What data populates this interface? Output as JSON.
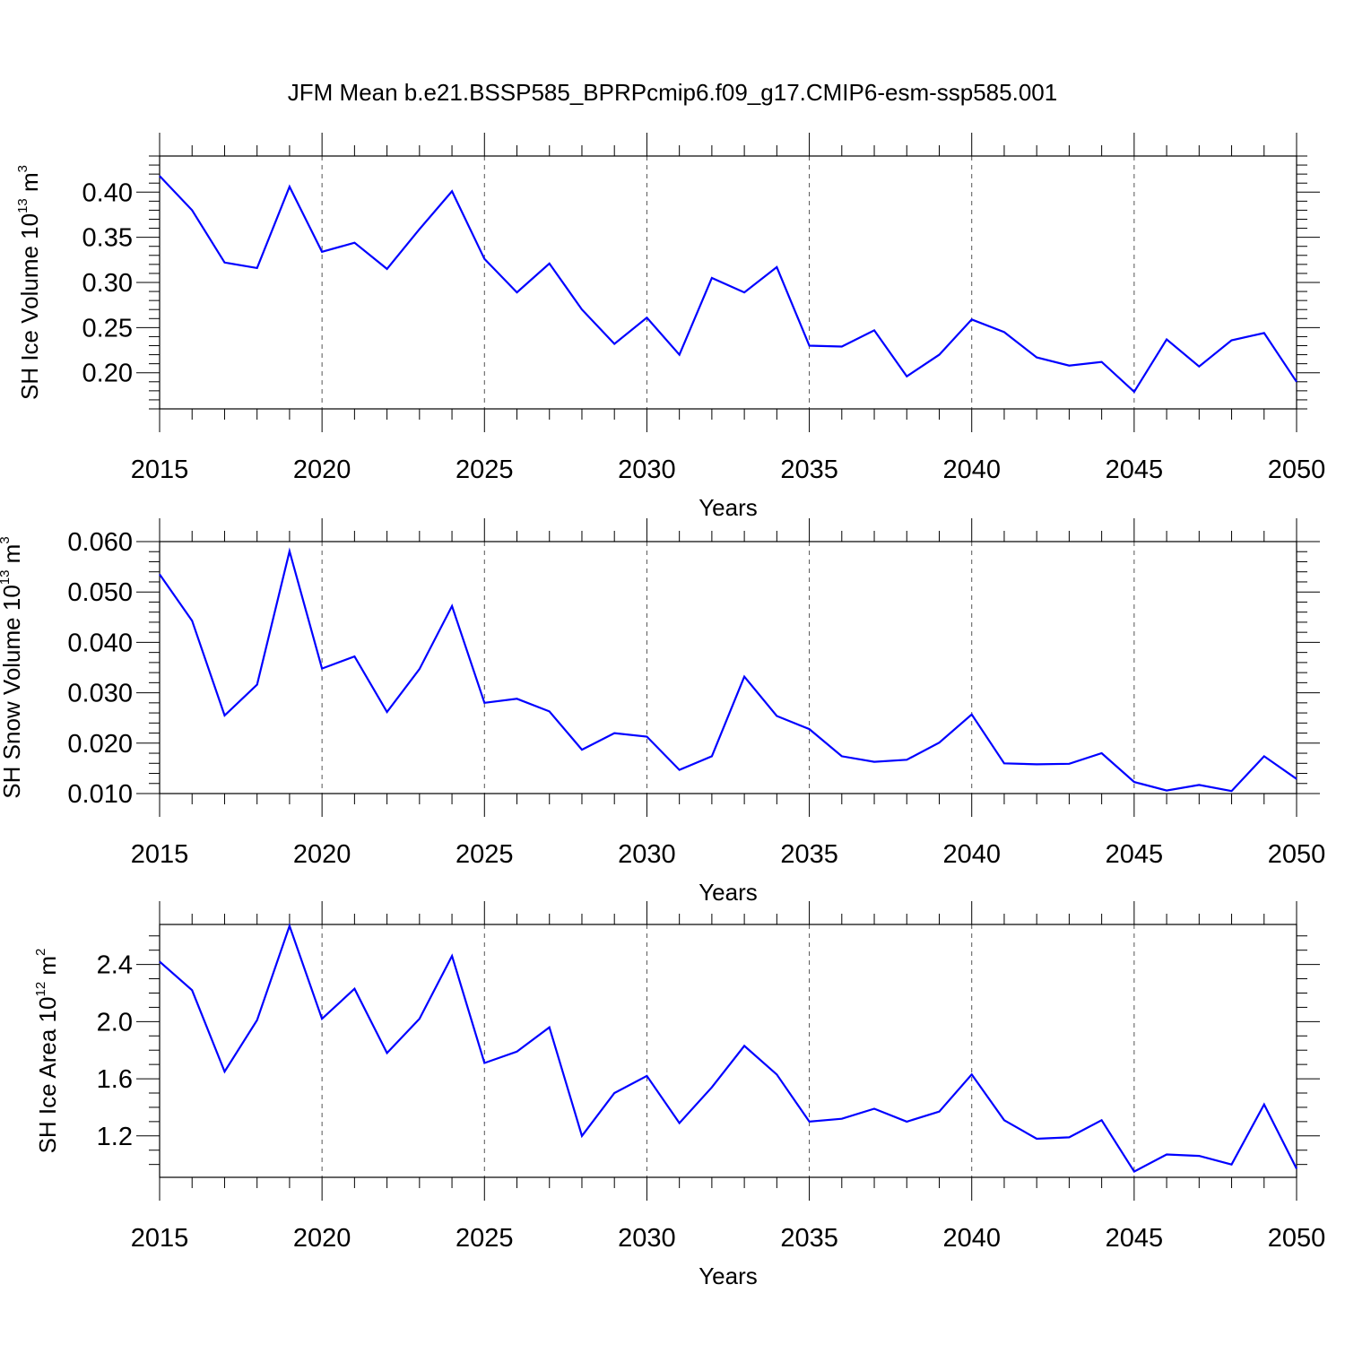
{
  "figure": {
    "title": "JFM Mean b.e21.BSSP585_BPRPcmip6.f09_g17.CMIP6-esm-ssp585.001",
    "line_color": "#0000ff"
  },
  "chart_data": [
    {
      "type": "line",
      "xlabel": "Years",
      "ylabel": {
        "prefix": "SH Ice Volume 10",
        "sup1": "13",
        "middle": " m",
        "sup2": "3"
      },
      "xlim": [
        2015,
        2050
      ],
      "ylim": [
        0.16,
        0.44
      ],
      "x_ticks": [
        2015,
        2020,
        2025,
        2030,
        2035,
        2040,
        2045,
        2050
      ],
      "x_tick_labels": [
        "2015",
        "2020",
        "2025",
        "2030",
        "2035",
        "2040",
        "2045",
        "2050"
      ],
      "x_minor_step": 1,
      "y_ticks": [
        0.2,
        0.25,
        0.3,
        0.35,
        0.4
      ],
      "y_tick_labels": [
        "0.20",
        "0.25",
        "0.30",
        "0.35",
        "0.40"
      ],
      "y_minor_step": 0.01,
      "grid": "x-major-dashed",
      "series": [
        {
          "x": [
            2015,
            2016,
            2017,
            2018,
            2019,
            2020,
            2021,
            2022,
            2023,
            2024,
            2025,
            2026,
            2027,
            2028,
            2029,
            2030,
            2031,
            2032,
            2033,
            2034,
            2035,
            2036,
            2037,
            2038,
            2039,
            2040,
            2041,
            2042,
            2043,
            2044,
            2045,
            2046,
            2047,
            2048,
            2049,
            2050
          ],
          "y": [
            0.418,
            0.38,
            0.322,
            0.316,
            0.406,
            0.334,
            0.344,
            0.315,
            0.359,
            0.401,
            0.326,
            0.289,
            0.321,
            0.27,
            0.232,
            0.261,
            0.22,
            0.305,
            0.289,
            0.317,
            0.23,
            0.229,
            0.247,
            0.196,
            0.22,
            0.259,
            0.245,
            0.217,
            0.208,
            0.212,
            0.179,
            0.237,
            0.207,
            0.236,
            0.244,
            0.19
          ]
        }
      ]
    },
    {
      "type": "line",
      "xlabel": "Years",
      "ylabel": {
        "prefix": "SH Snow Volume 10",
        "sup1": "13",
        "middle": " m",
        "sup2": "3"
      },
      "xlim": [
        2015,
        2050
      ],
      "ylim": [
        0.01,
        0.06
      ],
      "x_ticks": [
        2015,
        2020,
        2025,
        2030,
        2035,
        2040,
        2045,
        2050
      ],
      "x_tick_labels": [
        "2015",
        "2020",
        "2025",
        "2030",
        "2035",
        "2040",
        "2045",
        "2050"
      ],
      "x_minor_step": 1,
      "y_ticks": [
        0.01,
        0.02,
        0.03,
        0.04,
        0.05,
        0.06
      ],
      "y_tick_labels": [
        "0.010",
        "0.020",
        "0.030",
        "0.040",
        "0.050",
        "0.060"
      ],
      "y_minor_step": 0.002,
      "grid": "x-major-dashed",
      "series": [
        {
          "x": [
            2015,
            2016,
            2017,
            2018,
            2019,
            2020,
            2021,
            2022,
            2023,
            2024,
            2025,
            2026,
            2027,
            2028,
            2029,
            2030,
            2031,
            2032,
            2033,
            2034,
            2035,
            2036,
            2037,
            2038,
            2039,
            2040,
            2041,
            2042,
            2043,
            2044,
            2045,
            2046,
            2047,
            2048,
            2049,
            2050
          ],
          "y": [
            0.0535,
            0.0443,
            0.0255,
            0.0316,
            0.0581,
            0.0348,
            0.0372,
            0.0262,
            0.0347,
            0.0472,
            0.028,
            0.0288,
            0.0263,
            0.0187,
            0.022,
            0.0213,
            0.0147,
            0.0174,
            0.0332,
            0.0254,
            0.0228,
            0.0174,
            0.0163,
            0.0167,
            0.0201,
            0.0257,
            0.016,
            0.0158,
            0.0159,
            0.018,
            0.0123,
            0.0106,
            0.0117,
            0.0105,
            0.0174,
            0.0129
          ]
        }
      ]
    },
    {
      "type": "line",
      "xlabel": "Years",
      "ylabel": {
        "prefix": "SH Ice Area 10",
        "sup1": "12",
        "middle": " m",
        "sup2": "2"
      },
      "xlim": [
        2015,
        2050
      ],
      "ylim": [
        0.91,
        2.68
      ],
      "x_ticks": [
        2015,
        2020,
        2025,
        2030,
        2035,
        2040,
        2045,
        2050
      ],
      "x_tick_labels": [
        "2015",
        "2020",
        "2025",
        "2030",
        "2035",
        "2040",
        "2045",
        "2050"
      ],
      "x_minor_step": 1,
      "y_ticks": [
        1.2,
        1.6,
        2.0,
        2.4
      ],
      "y_tick_labels": [
        "1.2",
        "1.6",
        "2.0",
        "2.4"
      ],
      "y_minor_step": 0.1,
      "grid": "x-major-dashed",
      "series": [
        {
          "x": [
            2015,
            2016,
            2017,
            2018,
            2019,
            2020,
            2021,
            2022,
            2023,
            2024,
            2025,
            2026,
            2027,
            2028,
            2029,
            2030,
            2031,
            2032,
            2033,
            2034,
            2035,
            2036,
            2037,
            2038,
            2039,
            2040,
            2041,
            2042,
            2043,
            2044,
            2045,
            2046,
            2047,
            2048,
            2049,
            2050
          ],
          "y": [
            2.42,
            2.22,
            1.65,
            2.01,
            2.67,
            2.02,
            2.23,
            1.78,
            2.02,
            2.46,
            1.71,
            1.79,
            1.96,
            1.2,
            1.5,
            1.62,
            1.29,
            1.54,
            1.83,
            1.63,
            1.3,
            1.32,
            1.39,
            1.3,
            1.37,
            1.63,
            1.31,
            1.18,
            1.19,
            1.31,
            0.95,
            1.07,
            1.06,
            1.0,
            1.42,
            0.97
          ]
        }
      ]
    }
  ]
}
